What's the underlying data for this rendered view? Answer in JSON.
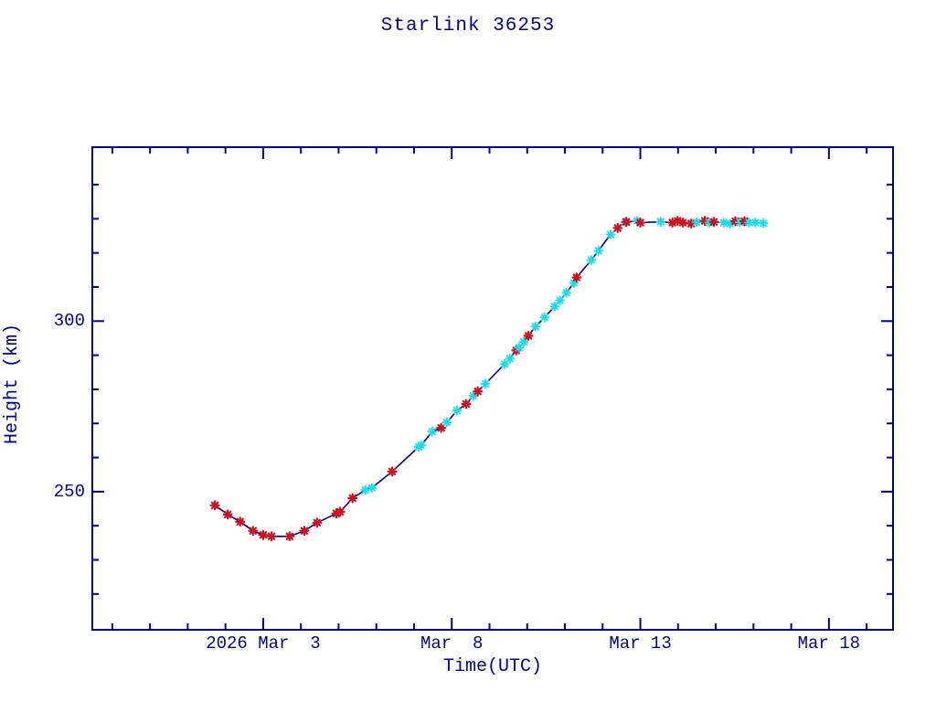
{
  "title": "Starlink 36253",
  "colors": {
    "text": "#00008B",
    "axis": "#00008B",
    "curve_line": "#00008B",
    "red_marker": "#CC1122",
    "cyan_marker": "#17DDE8",
    "background": "#FFFFFF"
  },
  "chart_data": {
    "type": "line",
    "title": "Starlink 36253",
    "xlabel": "Time(UTC)",
    "ylabel": "Height (km)",
    "x_unit": "day of March 2026 (decimal; Feb 28 = 0)",
    "xlim": [
      -1.53,
      19.7
    ],
    "ylim": [
      209.5,
      351.0
    ],
    "grid": false,
    "legend": "none",
    "tick_style": "inward ticks on all four sides",
    "x_axis": {
      "major_ticks": [
        {
          "day": 3,
          "label": "2026 Mar  3"
        },
        {
          "day": 8,
          "label": "Mar  8"
        },
        {
          "day": 13,
          "label": "Mar 13"
        },
        {
          "day": 18,
          "label": "Mar 18"
        }
      ],
      "minor_tick_interval_days": 1
    },
    "y_axis": {
      "major_ticks": [
        {
          "km": 250,
          "label": "250"
        },
        {
          "km": 300,
          "label": "300"
        }
      ],
      "minor_tick_interval_km": 10,
      "minor_tick_range_km": [
        220,
        340
      ]
    },
    "series": [
      {
        "name": "orbital-height",
        "line_color": "#00008B",
        "marker_shape": "asterisk",
        "marker_color_key": {
          "r": "red_marker",
          "c": "cyan_marker"
        },
        "points": [
          [
            1.72,
            246.0,
            "r"
          ],
          [
            2.06,
            243.3,
            "r"
          ],
          [
            2.39,
            241.2,
            "r"
          ],
          [
            2.73,
            238.5,
            "r"
          ],
          [
            3.0,
            237.3,
            "r"
          ],
          [
            3.22,
            236.9,
            "r"
          ],
          [
            3.7,
            236.9,
            "r"
          ],
          [
            4.09,
            238.5,
            "r"
          ],
          [
            4.43,
            240.9,
            "r"
          ],
          [
            4.94,
            243.6,
            "r"
          ],
          [
            5.04,
            244.1,
            "r"
          ],
          [
            5.37,
            248.1,
            "r"
          ],
          [
            5.71,
            250.5,
            "c"
          ],
          [
            5.88,
            251.1,
            "c"
          ],
          [
            6.42,
            255.9,
            "r"
          ],
          [
            7.12,
            263.1,
            "c"
          ],
          [
            7.19,
            263.6,
            "c"
          ],
          [
            7.48,
            267.6,
            "c"
          ],
          [
            7.72,
            268.7,
            "r"
          ],
          [
            7.87,
            270.3,
            "c"
          ],
          [
            8.14,
            273.8,
            "c"
          ],
          [
            8.38,
            275.7,
            "r"
          ],
          [
            8.57,
            278.1,
            "c"
          ],
          [
            8.69,
            279.4,
            "r"
          ],
          [
            8.89,
            281.6,
            "c"
          ],
          [
            9.4,
            287.4,
            "c"
          ],
          [
            9.54,
            289.0,
            "c"
          ],
          [
            9.71,
            291.4,
            "r"
          ],
          [
            9.78,
            292.2,
            "c"
          ],
          [
            9.91,
            293.9,
            "c"
          ],
          [
            10.03,
            295.7,
            "r"
          ],
          [
            10.22,
            298.4,
            "c"
          ],
          [
            10.46,
            301.1,
            "c"
          ],
          [
            10.73,
            304.3,
            "c"
          ],
          [
            10.87,
            306.1,
            "c"
          ],
          [
            11.04,
            308.3,
            "c"
          ],
          [
            11.24,
            311.2,
            "c"
          ],
          [
            11.31,
            312.8,
            "r"
          ],
          [
            11.7,
            317.9,
            "c"
          ],
          [
            11.89,
            320.6,
            "c"
          ],
          [
            12.21,
            325.4,
            "c"
          ],
          [
            12.4,
            327.3,
            "r"
          ],
          [
            12.6,
            329.1,
            "c"
          ],
          [
            12.63,
            329.1,
            "r"
          ],
          [
            12.91,
            329.4,
            "c"
          ],
          [
            13.0,
            328.9,
            "r"
          ],
          [
            13.54,
            329.1,
            "c"
          ],
          [
            13.85,
            328.9,
            "r"
          ],
          [
            13.99,
            329.4,
            "r"
          ],
          [
            14.13,
            328.9,
            "r"
          ],
          [
            14.35,
            328.6,
            "r"
          ],
          [
            14.49,
            329.0,
            "c"
          ],
          [
            14.71,
            329.4,
            "r"
          ],
          [
            14.83,
            328.9,
            "c"
          ],
          [
            14.95,
            329.1,
            "r"
          ],
          [
            15.21,
            328.9,
            "c"
          ],
          [
            15.38,
            328.6,
            "c"
          ],
          [
            15.52,
            329.3,
            "r"
          ],
          [
            15.64,
            329.0,
            "c"
          ],
          [
            15.76,
            329.3,
            "r"
          ],
          [
            15.88,
            328.9,
            "c"
          ],
          [
            16.05,
            328.9,
            "c"
          ],
          [
            16.26,
            328.7,
            "c"
          ]
        ]
      }
    ]
  }
}
